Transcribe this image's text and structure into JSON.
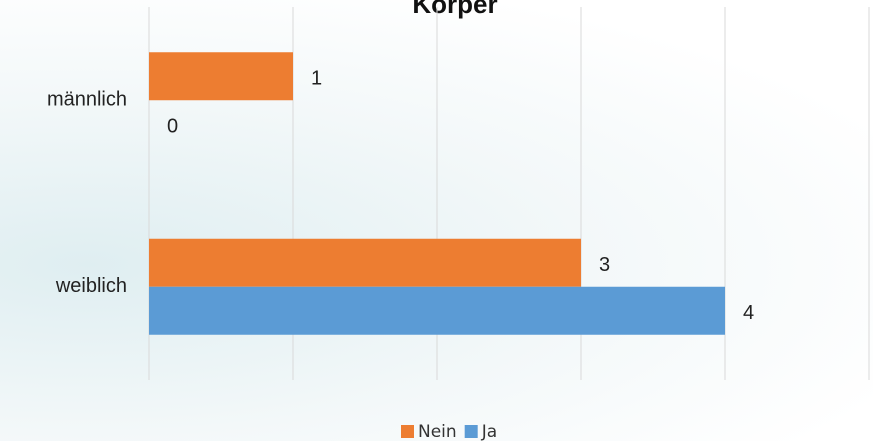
{
  "chart_data": {
    "type": "hbar",
    "title": "Körper",
    "categories": [
      "männlich",
      "weiblich"
    ],
    "series": [
      {
        "name": "Nein",
        "color": "#ed7d31",
        "values": [
          1,
          3
        ]
      },
      {
        "name": "Ja",
        "color": "#5b9bd5",
        "values": [
          0,
          4
        ]
      }
    ],
    "xlim": [
      0,
      5
    ],
    "xticks": [
      0,
      1,
      2,
      3,
      4,
      5
    ],
    "grid": true,
    "legend": "bottom"
  }
}
